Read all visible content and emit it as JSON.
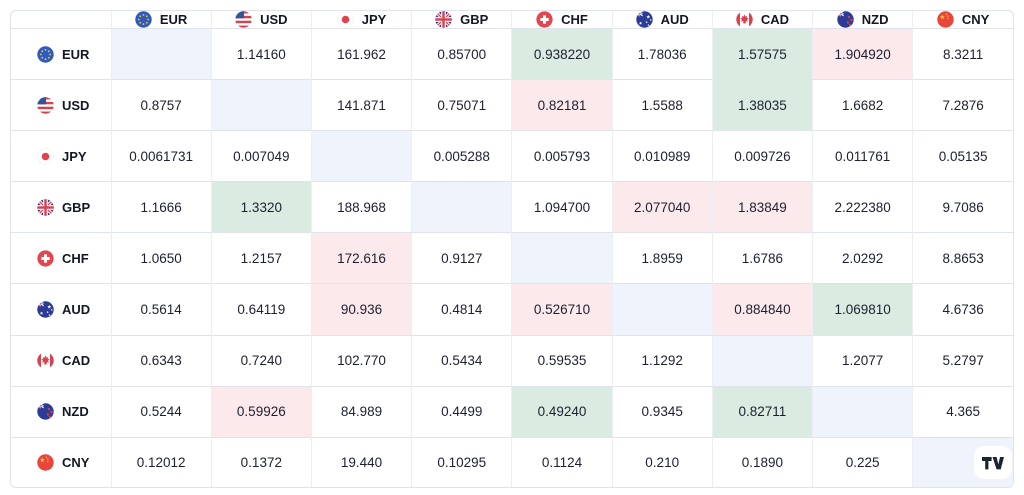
{
  "widget": {
    "name": "forex-cross-rates"
  },
  "colors": {
    "up_bg": "#daece2",
    "down_bg": "#fce9ec",
    "diag_bg": "#eff3fc",
    "grid_h": "#e0e3eb",
    "grid_v": "#eceef4",
    "text": "#131722",
    "background": "#ffffff"
  },
  "table": {
    "corner_label": "",
    "columns": [
      {
        "code": "EUR",
        "flag_icon": "eur-flag-icon"
      },
      {
        "code": "USD",
        "flag_icon": "usd-flag-icon"
      },
      {
        "code": "JPY",
        "flag_icon": "jpy-flag-icon"
      },
      {
        "code": "GBP",
        "flag_icon": "gbp-flag-icon"
      },
      {
        "code": "CHF",
        "flag_icon": "chf-flag-icon"
      },
      {
        "code": "AUD",
        "flag_icon": "aud-flag-icon"
      },
      {
        "code": "CAD",
        "flag_icon": "cad-flag-icon"
      },
      {
        "code": "NZD",
        "flag_icon": "nzd-flag-icon"
      },
      {
        "code": "CNY",
        "flag_icon": "cny-flag-icon"
      }
    ],
    "rows": [
      {
        "code": "EUR",
        "flag_icon": "eur-flag-icon",
        "cells": [
          {
            "value": "",
            "state": "self"
          },
          {
            "value": "1.14160",
            "state": "none"
          },
          {
            "value": "161.962",
            "state": "none"
          },
          {
            "value": "0.85700",
            "state": "none"
          },
          {
            "value": "0.938220",
            "state": "up"
          },
          {
            "value": "1.78036",
            "state": "none"
          },
          {
            "value": "1.57575",
            "state": "up"
          },
          {
            "value": "1.904920",
            "state": "down"
          },
          {
            "value": "8.3211",
            "state": "none"
          }
        ]
      },
      {
        "code": "USD",
        "flag_icon": "usd-flag-icon",
        "cells": [
          {
            "value": "0.8757",
            "state": "none"
          },
          {
            "value": "",
            "state": "self"
          },
          {
            "value": "141.871",
            "state": "none"
          },
          {
            "value": "0.75071",
            "state": "none"
          },
          {
            "value": "0.82181",
            "state": "down"
          },
          {
            "value": "1.5588",
            "state": "none"
          },
          {
            "value": "1.38035",
            "state": "up"
          },
          {
            "value": "1.6682",
            "state": "none"
          },
          {
            "value": "7.2876",
            "state": "none"
          }
        ]
      },
      {
        "code": "JPY",
        "flag_icon": "jpy-flag-icon",
        "cells": [
          {
            "value": "0.0061731",
            "state": "none"
          },
          {
            "value": "0.007049",
            "state": "none"
          },
          {
            "value": "",
            "state": "self"
          },
          {
            "value": "0.005288",
            "state": "none"
          },
          {
            "value": "0.005793",
            "state": "none"
          },
          {
            "value": "0.010989",
            "state": "none"
          },
          {
            "value": "0.009726",
            "state": "none"
          },
          {
            "value": "0.011761",
            "state": "none"
          },
          {
            "value": "0.05135",
            "state": "none"
          }
        ]
      },
      {
        "code": "GBP",
        "flag_icon": "gbp-flag-icon",
        "cells": [
          {
            "value": "1.1666",
            "state": "none"
          },
          {
            "value": "1.3320",
            "state": "up"
          },
          {
            "value": "188.968",
            "state": "none"
          },
          {
            "value": "",
            "state": "self"
          },
          {
            "value": "1.094700",
            "state": "none"
          },
          {
            "value": "2.077040",
            "state": "down"
          },
          {
            "value": "1.83849",
            "state": "down"
          },
          {
            "value": "2.222380",
            "state": "none"
          },
          {
            "value": "9.7086",
            "state": "none"
          }
        ]
      },
      {
        "code": "CHF",
        "flag_icon": "chf-flag-icon",
        "cells": [
          {
            "value": "1.0650",
            "state": "none"
          },
          {
            "value": "1.2157",
            "state": "none"
          },
          {
            "value": "172.616",
            "state": "down"
          },
          {
            "value": "0.9127",
            "state": "none"
          },
          {
            "value": "",
            "state": "self"
          },
          {
            "value": "1.8959",
            "state": "none"
          },
          {
            "value": "1.6786",
            "state": "none"
          },
          {
            "value": "2.0292",
            "state": "none"
          },
          {
            "value": "8.8653",
            "state": "none"
          }
        ]
      },
      {
        "code": "AUD",
        "flag_icon": "aud-flag-icon",
        "cells": [
          {
            "value": "0.5614",
            "state": "none"
          },
          {
            "value": "0.64119",
            "state": "none"
          },
          {
            "value": "90.936",
            "state": "down"
          },
          {
            "value": "0.4814",
            "state": "none"
          },
          {
            "value": "0.526710",
            "state": "down"
          },
          {
            "value": "",
            "state": "self"
          },
          {
            "value": "0.884840",
            "state": "down"
          },
          {
            "value": "1.069810",
            "state": "up"
          },
          {
            "value": "4.6736",
            "state": "none"
          }
        ]
      },
      {
        "code": "CAD",
        "flag_icon": "cad-flag-icon",
        "cells": [
          {
            "value": "0.6343",
            "state": "none"
          },
          {
            "value": "0.7240",
            "state": "none"
          },
          {
            "value": "102.770",
            "state": "none"
          },
          {
            "value": "0.5434",
            "state": "none"
          },
          {
            "value": "0.59535",
            "state": "none"
          },
          {
            "value": "1.1292",
            "state": "none"
          },
          {
            "value": "",
            "state": "self"
          },
          {
            "value": "1.2077",
            "state": "none"
          },
          {
            "value": "5.2797",
            "state": "none"
          }
        ]
      },
      {
        "code": "NZD",
        "flag_icon": "nzd-flag-icon",
        "cells": [
          {
            "value": "0.5244",
            "state": "none"
          },
          {
            "value": "0.59926",
            "state": "down"
          },
          {
            "value": "84.989",
            "state": "none"
          },
          {
            "value": "0.4499",
            "state": "none"
          },
          {
            "value": "0.49240",
            "state": "up"
          },
          {
            "value": "0.9345",
            "state": "none"
          },
          {
            "value": "0.82711",
            "state": "up"
          },
          {
            "value": "",
            "state": "self"
          },
          {
            "value": "4.365",
            "state": "none"
          }
        ]
      },
      {
        "code": "CNY",
        "flag_icon": "cny-flag-icon",
        "cells": [
          {
            "value": "0.12012",
            "state": "none"
          },
          {
            "value": "0.1372",
            "state": "none"
          },
          {
            "value": "19.440",
            "state": "none"
          },
          {
            "value": "0.10295",
            "state": "none"
          },
          {
            "value": "0.1124",
            "state": "none"
          },
          {
            "value": "0.210",
            "state": "none"
          },
          {
            "value": "0.1890",
            "state": "none"
          },
          {
            "value": "0.225",
            "state": "none"
          },
          {
            "value": "",
            "state": "self"
          }
        ]
      }
    ]
  },
  "logo": {
    "icon": "tradingview-logo"
  }
}
